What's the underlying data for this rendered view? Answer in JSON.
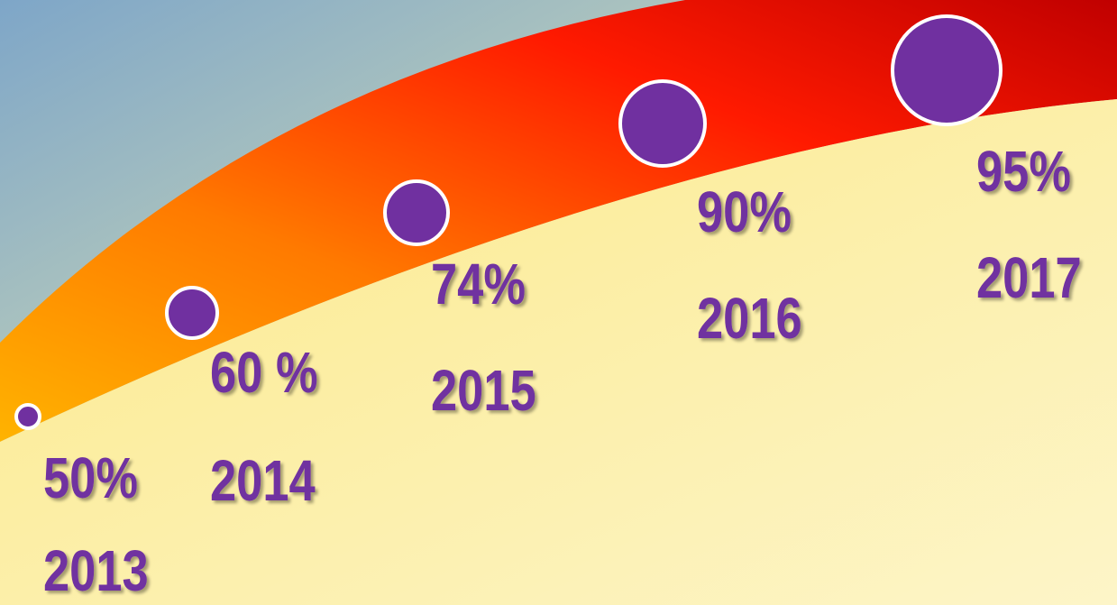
{
  "milestones": [
    {
      "value": "50%",
      "year": "2013"
    },
    {
      "value": "60 %",
      "year": "2014"
    },
    {
      "value": "74%",
      "year": "2015"
    },
    {
      "value": "90%",
      "year": "2016"
    },
    {
      "value": "95%",
      "year": "2017"
    }
  ]
}
